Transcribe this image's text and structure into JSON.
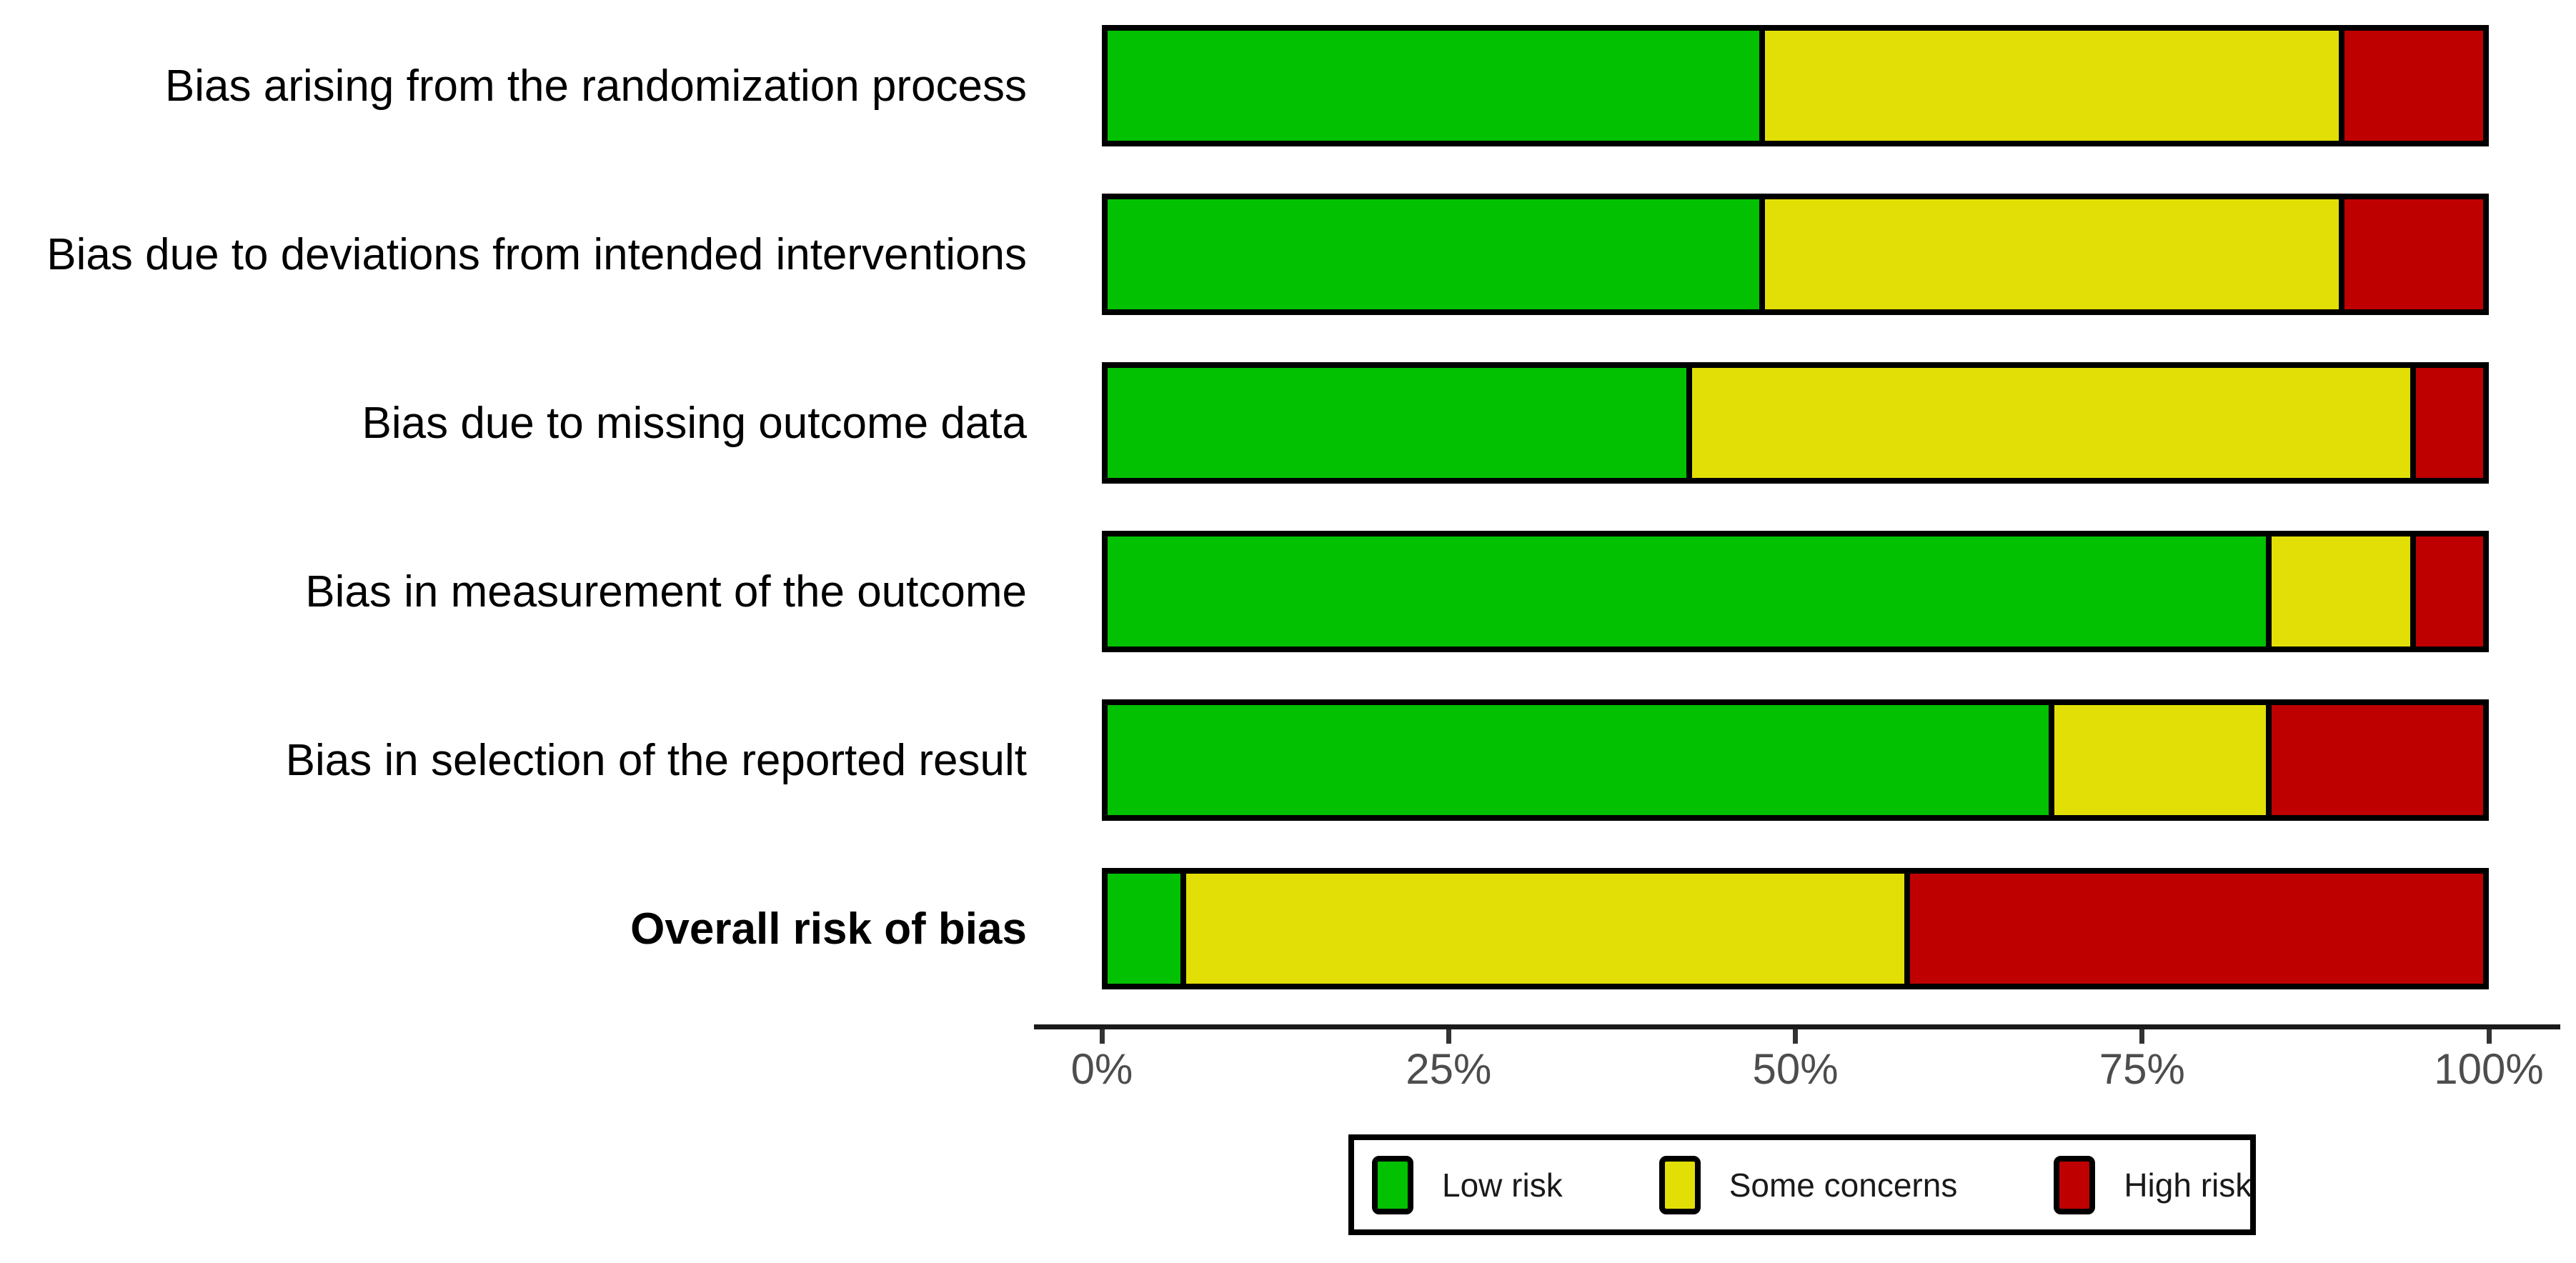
{
  "chart_data": {
    "type": "bar",
    "variant": "horizontal-stacked-percent",
    "title": "",
    "xlabel": "",
    "ylabel": "",
    "categories": [
      "Bias arising from the randomization process",
      "Bias due to deviations from intended interventions",
      "Bias due to missing outcome data",
      "Bias in measurement of the outcome",
      "Bias in selection of the reported result",
      "Overall risk of bias"
    ],
    "emphasized_category": "Overall risk of bias",
    "series": [
      {
        "name": "Low risk",
        "color": "#02C100",
        "values": [
          47.4,
          47.4,
          42.1,
          84.2,
          68.4,
          5.3
        ]
      },
      {
        "name": "Some concerns",
        "color": "#E2DF07",
        "values": [
          42.1,
          42.1,
          52.6,
          10.5,
          15.8,
          52.6
        ]
      },
      {
        "name": "High risk",
        "color": "#BF0000",
        "values": [
          10.5,
          10.5,
          5.3,
          5.3,
          15.8,
          42.1
        ]
      }
    ],
    "x_axis": {
      "tick_labels": [
        "0%",
        "25%",
        "50%",
        "75%",
        "100%"
      ],
      "range_percent": [
        0,
        100
      ],
      "grid": false,
      "tick_text_color": "#4d4d4d",
      "line_color": "#1a1a1a"
    },
    "legend": {
      "position": "bottom-center",
      "entries": [
        {
          "label": "Low risk",
          "color": "#02C100"
        },
        {
          "label": "Some concerns",
          "color": "#E2DF07"
        },
        {
          "label": "High risk",
          "color": "#BF0000"
        }
      ]
    },
    "style": {
      "segment_border_color": "#000000",
      "background": "#ffffff",
      "label_text_color": "#000000"
    }
  }
}
